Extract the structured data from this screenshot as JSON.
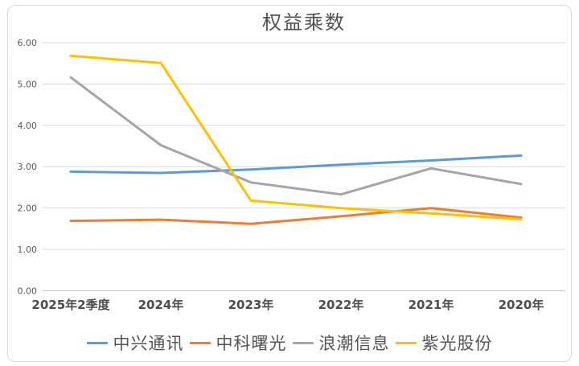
{
  "chart_data": {
    "type": "line",
    "title": "权益乘数",
    "categories": [
      "2025年2季度",
      "2024年",
      "2023年",
      "2022年",
      "2021年",
      "2020年"
    ],
    "series": [
      {
        "name": "中兴通讯",
        "color": "#5B9BD5",
        "values": [
          2.88,
          2.85,
          2.93,
          3.05,
          3.15,
          3.27
        ]
      },
      {
        "name": "中科曙光",
        "color": "#ED7D31",
        "values": [
          1.69,
          1.72,
          1.62,
          1.8,
          2.0,
          1.77
        ]
      },
      {
        "name": "浪潮信息",
        "color": "#A5A5A5",
        "values": [
          5.16,
          3.52,
          2.62,
          2.33,
          2.96,
          2.58
        ]
      },
      {
        "name": "紫光股份",
        "color": "#FFC000",
        "values": [
          5.68,
          5.51,
          2.18,
          2.0,
          1.87,
          1.73
        ]
      }
    ],
    "xlabel": "",
    "ylabel": "",
    "ylim": [
      0,
      6
    ],
    "ytick_step": 1,
    "yticks": [
      "0.00",
      "1.00",
      "2.00",
      "3.00",
      "4.00",
      "5.00",
      "6.00"
    ],
    "grid": "horizontal",
    "legend_position": "bottom",
    "gridline_color": "#D9D9D9",
    "axisline_color": "#C6C6C6",
    "text_color": "#595959",
    "frame_border_color": "#D9D9D9",
    "background_color": "#FFFFFF"
  }
}
